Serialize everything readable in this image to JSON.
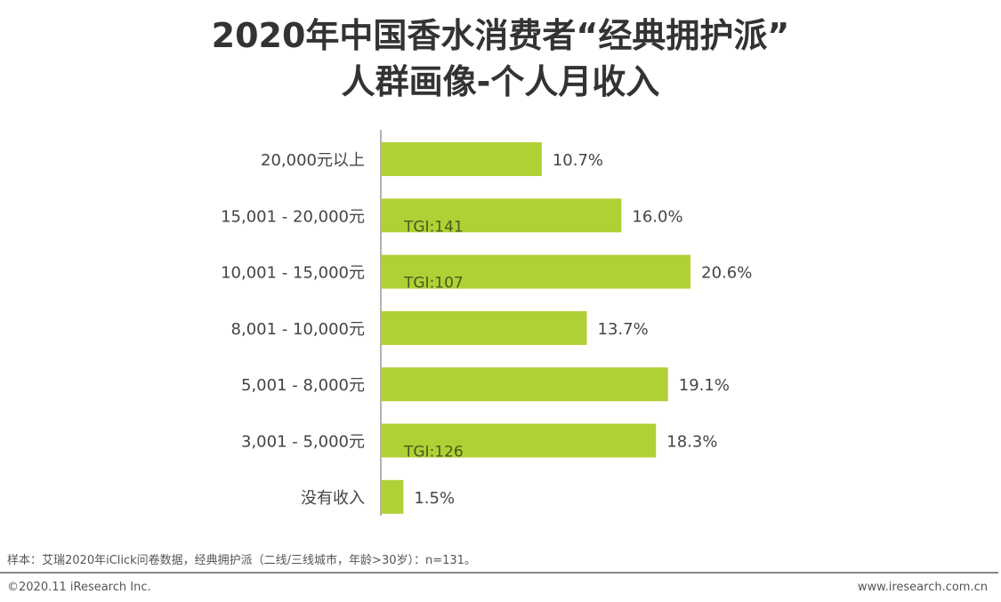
{
  "chart_data": {
    "type": "bar",
    "orientation": "horizontal",
    "title": "2020年中国香水消费者“经典拥护派”",
    "subtitle": "人群画像-个人月收入",
    "categories": [
      "20,000元以上",
      "15,001 - 20,000元",
      "10,001 - 15,000元",
      "8,001 - 10,000元",
      "5,001 - 8,000元",
      "3,001 - 5,000元",
      "没有收入"
    ],
    "values": [
      10.7,
      16.0,
      20.6,
      13.7,
      19.1,
      18.3,
      1.5
    ],
    "value_labels": [
      "10.7%",
      "16.0%",
      "20.6%",
      "13.7%",
      "19.1%",
      "18.3%",
      "1.5%"
    ],
    "annotations": [
      "",
      "TGI:141",
      "TGI:107",
      "",
      "",
      "TGI:126",
      ""
    ],
    "unit": "%",
    "grid": false,
    "colors": {
      "bar": "#b0d136",
      "annotation": "#4a5a1a",
      "label": "#444444"
    }
  },
  "footer": {
    "note": "样本：艾瑞2020年iClick问卷数据，经典拥护派（二线/三线城市，年龄>30岁）：n=131。",
    "copyright": "©2020.11 iResearch Inc.",
    "website": "www.iresearch.com.cn"
  }
}
